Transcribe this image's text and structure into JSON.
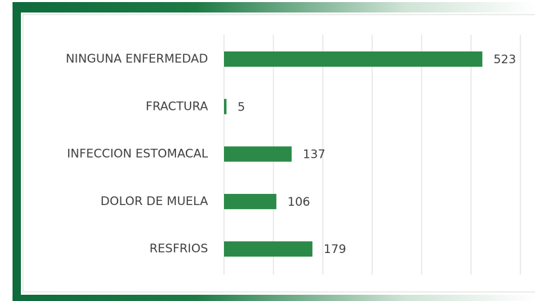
{
  "chart_data": {
    "type": "bar",
    "orientation": "horizontal",
    "categories": [
      "NINGUNA ENFERMEDAD",
      "FRACTURA",
      "INFECCION ESTOMACAL",
      "DOLOR DE MUELA",
      "RESFRIOS"
    ],
    "values": [
      523,
      5,
      137,
      106,
      179
    ],
    "color": "#2b8a48",
    "xlim": [
      0,
      600
    ],
    "xticks": [
      0,
      100,
      200,
      300,
      400,
      500,
      600
    ],
    "grid": true
  }
}
